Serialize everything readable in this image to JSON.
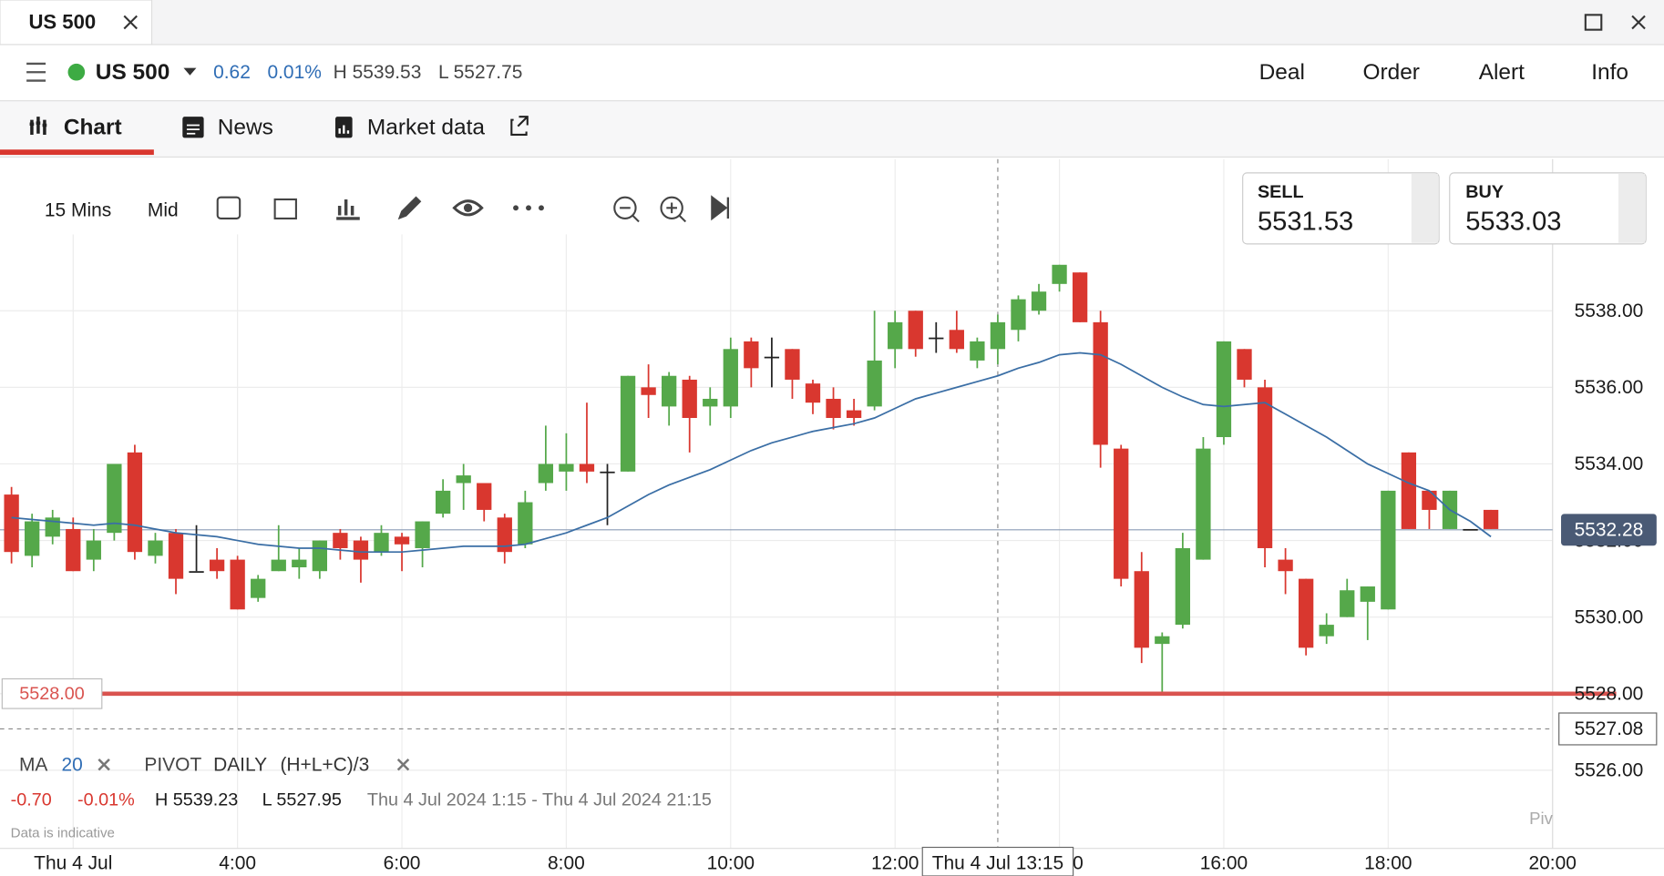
{
  "window": {
    "tab": "US 500"
  },
  "header": {
    "instrument": "US 500",
    "change": "0.62",
    "change_pct": "0.01%",
    "high": "H 5539.53",
    "low": "L 5527.75",
    "actions": [
      "Deal",
      "Order",
      "Alert",
      "Info"
    ]
  },
  "tabs": [
    "Chart",
    "News",
    "Market data"
  ],
  "toolbar": {
    "interval": "15 Mins",
    "price_type": "Mid"
  },
  "quotes": {
    "sell_label": "SELL",
    "sell": "5531.53",
    "buy_label": "BUY",
    "buy": "5533.03"
  },
  "indicators": {
    "ma": "MA",
    "ma_period": "20",
    "pivot": "PIVOT",
    "pivot_period": "DAILY",
    "pivot_formula": "(H+L+C)/3"
  },
  "stats": {
    "change": "-0.70",
    "change_pct": "-0.01%",
    "high": "H 5539.23",
    "low": "L 5527.95",
    "range": "Thu 4 Jul 2024 1:15 - Thu 4 Jul 2024 21:15"
  },
  "disclaimer": "Data is indicative",
  "pivot_tag": "Piv",
  "chart_data": {
    "type": "candlestick",
    "x": [
      1.25,
      1.5,
      1.75,
      2,
      2.25,
      2.5,
      2.75,
      3,
      3.25,
      3.5,
      3.75,
      4,
      4.25,
      4.5,
      4.75,
      5,
      5.25,
      5.5,
      5.75,
      6,
      6.25,
      6.5,
      6.75,
      7,
      7.25,
      7.5,
      7.75,
      8,
      8.25,
      8.5,
      8.75,
      9,
      9.25,
      9.5,
      9.75,
      10,
      10.25,
      10.5,
      10.75,
      11,
      11.25,
      11.5,
      11.75,
      12,
      12.25,
      12.5,
      12.75,
      13,
      13.25,
      13.5,
      13.75,
      14,
      14.25,
      14.5,
      14.75,
      15,
      15.25,
      15.5,
      15.75,
      16,
      16.25,
      16.5,
      16.75,
      17,
      17.25,
      17.5,
      17.75,
      18,
      18.25,
      18.5,
      18.75,
      19,
      19.25
    ],
    "open": [
      5533.2,
      5531.6,
      5532.1,
      5532.3,
      5531.5,
      5532.2,
      5534.3,
      5531.6,
      5532.2,
      5531.2,
      5531.5,
      5531.5,
      5530.5,
      5531.2,
      5531.3,
      5531.2,
      5532.2,
      5532.0,
      5531.7,
      5532.1,
      5531.8,
      5532.7,
      5533.5,
      5533.5,
      5532.6,
      5531.9,
      5533.5,
      5533.8,
      5534.0,
      5533.8,
      5533.8,
      5536.0,
      5535.5,
      5536.2,
      5535.5,
      5535.5,
      5537.2,
      5536.8,
      5537.0,
      5536.1,
      5535.7,
      5535.4,
      5535.5,
      5537.0,
      5538.0,
      5537.3,
      5537.5,
      5536.7,
      5537.0,
      5537.5,
      5538.0,
      5538.7,
      5539.0,
      5537.7,
      5534.4,
      5531.2,
      5529.3,
      5529.8,
      5531.5,
      5534.7,
      5537.0,
      5536.0,
      5531.5,
      5531.0,
      5529.5,
      5530.0,
      5530.4,
      5530.2,
      5534.3,
      5533.3,
      5532.3,
      5532.3,
      5532.8
    ],
    "high": [
      5533.4,
      5532.7,
      5532.8,
      5532.6,
      5532.3,
      5534.0,
      5534.5,
      5532.2,
      5532.3,
      5532.4,
      5531.8,
      5531.6,
      5531.1,
      5532.4,
      5531.8,
      5532.0,
      5532.3,
      5532.1,
      5532.4,
      5532.2,
      5532.5,
      5533.6,
      5534.0,
      5533.5,
      5532.7,
      5533.3,
      5535.0,
      5534.8,
      5535.6,
      5534.0,
      5536.3,
      5536.6,
      5536.4,
      5536.3,
      5536.0,
      5537.3,
      5537.3,
      5537.3,
      5537.0,
      5536.2,
      5536.0,
      5535.7,
      5538.0,
      5538.0,
      5538.0,
      5537.7,
      5538.0,
      5537.3,
      5537.9,
      5538.4,
      5538.7,
      5539.2,
      5539.0,
      5538.0,
      5534.5,
      5531.7,
      5529.6,
      5532.2,
      5534.7,
      5537.2,
      5537.0,
      5536.2,
      5531.8,
      5531.0,
      5530.1,
      5531.0,
      5530.8,
      5533.3,
      5534.3,
      5533.3,
      5533.3,
      5532.3,
      5532.8
    ],
    "low": [
      5531.4,
      5531.3,
      5531.9,
      5531.2,
      5531.2,
      5532.0,
      5531.5,
      5531.4,
      5530.6,
      5531.2,
      5531.0,
      5530.2,
      5530.4,
      5531.2,
      5531.0,
      5531.0,
      5531.5,
      5530.9,
      5531.6,
      5531.2,
      5531.3,
      5532.6,
      5532.8,
      5532.5,
      5531.4,
      5531.8,
      5533.3,
      5533.3,
      5533.5,
      5532.4,
      5533.8,
      5535.2,
      5535.0,
      5534.3,
      5535.0,
      5535.2,
      5536.0,
      5536.0,
      5535.7,
      5535.3,
      5534.9,
      5535.0,
      5535.4,
      5536.5,
      5536.8,
      5536.9,
      5536.9,
      5536.5,
      5536.6,
      5537.2,
      5537.9,
      5538.5,
      5537.7,
      5533.9,
      5530.8,
      5528.8,
      5527.95,
      5529.7,
      5531.5,
      5534.5,
      5536.0,
      5531.3,
      5530.6,
      5529.0,
      5529.3,
      5530.0,
      5529.4,
      5530.2,
      5532.3,
      5532.3,
      5532.3,
      5532.3,
      5532.3
    ],
    "close": [
      5531.7,
      5532.5,
      5532.6,
      5531.2,
      5532.0,
      5534.0,
      5531.7,
      5532.0,
      5531.0,
      5531.2,
      5531.2,
      5530.2,
      5531.0,
      5531.5,
      5531.5,
      5532.0,
      5531.8,
      5531.5,
      5532.2,
      5531.9,
      5532.5,
      5533.3,
      5533.7,
      5532.8,
      5531.7,
      5533.0,
      5534.0,
      5534.0,
      5533.8,
      5533.8,
      5536.3,
      5535.8,
      5536.3,
      5535.2,
      5535.7,
      5537.0,
      5536.5,
      5536.8,
      5536.2,
      5535.6,
      5535.2,
      5535.2,
      5536.7,
      5537.7,
      5537.0,
      5537.3,
      5537.0,
      5537.2,
      5537.7,
      5538.3,
      5538.5,
      5539.2,
      5537.7,
      5534.5,
      5531.0,
      5529.2,
      5529.5,
      5531.8,
      5534.4,
      5537.2,
      5536.2,
      5531.8,
      5531.2,
      5529.2,
      5529.8,
      5530.7,
      5530.8,
      5533.3,
      5532.3,
      5532.8,
      5533.3,
      5532.3,
      5532.3
    ],
    "ma": {
      "name": "MA 20",
      "color": "#3a6ea5",
      "values": [
        5532.6,
        5532.55,
        5532.5,
        5532.45,
        5532.4,
        5532.45,
        5532.4,
        5532.3,
        5532.2,
        5532.15,
        5532.1,
        5532.0,
        5531.9,
        5531.85,
        5531.8,
        5531.8,
        5531.75,
        5531.7,
        5531.7,
        5531.7,
        5531.75,
        5531.8,
        5531.85,
        5531.85,
        5531.85,
        5531.9,
        5532.05,
        5532.2,
        5532.4,
        5532.6,
        5532.9,
        5533.2,
        5533.45,
        5533.65,
        5533.85,
        5534.1,
        5534.35,
        5534.55,
        5534.7,
        5534.85,
        5534.95,
        5535.05,
        5535.2,
        5535.45,
        5535.7,
        5535.85,
        5536.0,
        5536.15,
        5536.3,
        5536.5,
        5536.65,
        5536.85,
        5536.9,
        5536.85,
        5536.6,
        5536.3,
        5536.0,
        5535.75,
        5535.55,
        5535.5,
        5535.55,
        5535.6,
        5535.3,
        5535.0,
        5534.7,
        5534.35,
        5534.0,
        5533.75,
        5533.5,
        5533.3,
        5532.8,
        5532.5,
        5532.1
      ]
    },
    "up_color": "#55a84a",
    "down_color": "#d9372f",
    "xlim": [
      1.11,
      20
    ],
    "xticks": [
      {
        "value": 2,
        "label": "Thu 4 Jul"
      },
      {
        "value": 4,
        "label": "4:00"
      },
      {
        "value": 6,
        "label": "6:00"
      },
      {
        "value": 8,
        "label": "8:00"
      },
      {
        "value": 10,
        "label": "10:00"
      },
      {
        "value": 12,
        "label": "12:00"
      },
      {
        "value": 14,
        "label": "14:00"
      },
      {
        "value": 16,
        "label": "16:00"
      },
      {
        "value": 18,
        "label": "18:00"
      },
      {
        "value": 20,
        "label": "20:00"
      }
    ],
    "ylim": [
      5523.96,
      5541.96
    ],
    "yticks": [
      {
        "value": 5526,
        "label": "5526.00"
      },
      {
        "value": 5528,
        "label": "5528.00"
      },
      {
        "value": 5530,
        "label": "5530.00"
      },
      {
        "value": 5532,
        "label": "5532.00"
      },
      {
        "value": 5534,
        "label": "5534.00"
      },
      {
        "value": 5536,
        "label": "5536.00"
      },
      {
        "value": 5538,
        "label": "5538.00"
      }
    ],
    "grid": true,
    "current_price": {
      "value": 5532.28,
      "label": "5532.28"
    },
    "level_line": {
      "value": 5528,
      "label": "5528.00",
      "color": "#d9534f"
    },
    "crosshair": {
      "x": 13.25,
      "x_label": "Thu 4 Jul 13:15",
      "y": 5527.08,
      "y_label": "5527.08"
    }
  }
}
